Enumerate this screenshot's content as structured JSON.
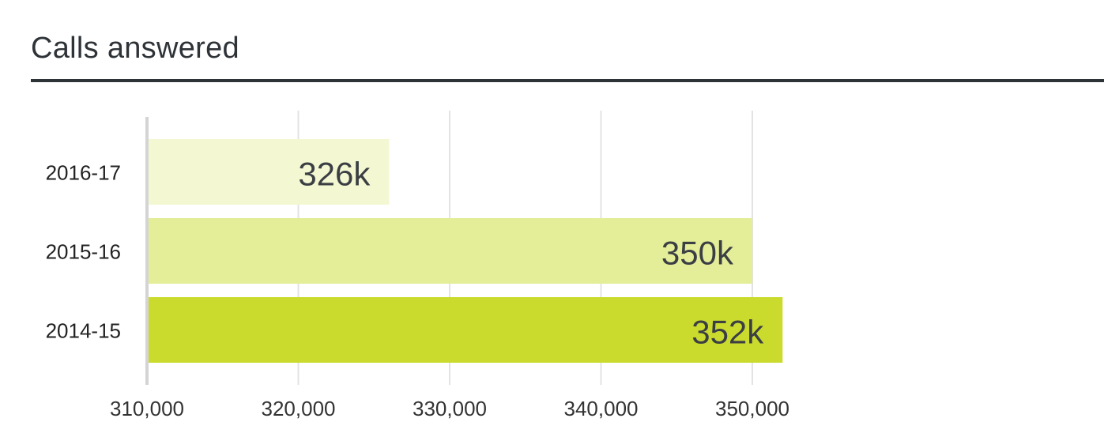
{
  "chart_data": {
    "type": "bar",
    "orientation": "horizontal",
    "title": "Calls answered",
    "categories": [
      "2016-17",
      "2015-16",
      "2014-15"
    ],
    "values": [
      326000,
      350000,
      352000
    ],
    "data_labels": [
      "326k",
      "350k",
      "352k"
    ],
    "colors": [
      "#f3f8d3",
      "#e4ed98",
      "#cbdb2e"
    ],
    "xlim": [
      310000,
      350000
    ],
    "xticks": [
      310000,
      320000,
      330000,
      340000,
      350000
    ],
    "xtick_labels": [
      "310,000",
      "320,000",
      "330,000",
      "340,000",
      "350,000"
    ],
    "grid": true,
    "legend": "none"
  }
}
